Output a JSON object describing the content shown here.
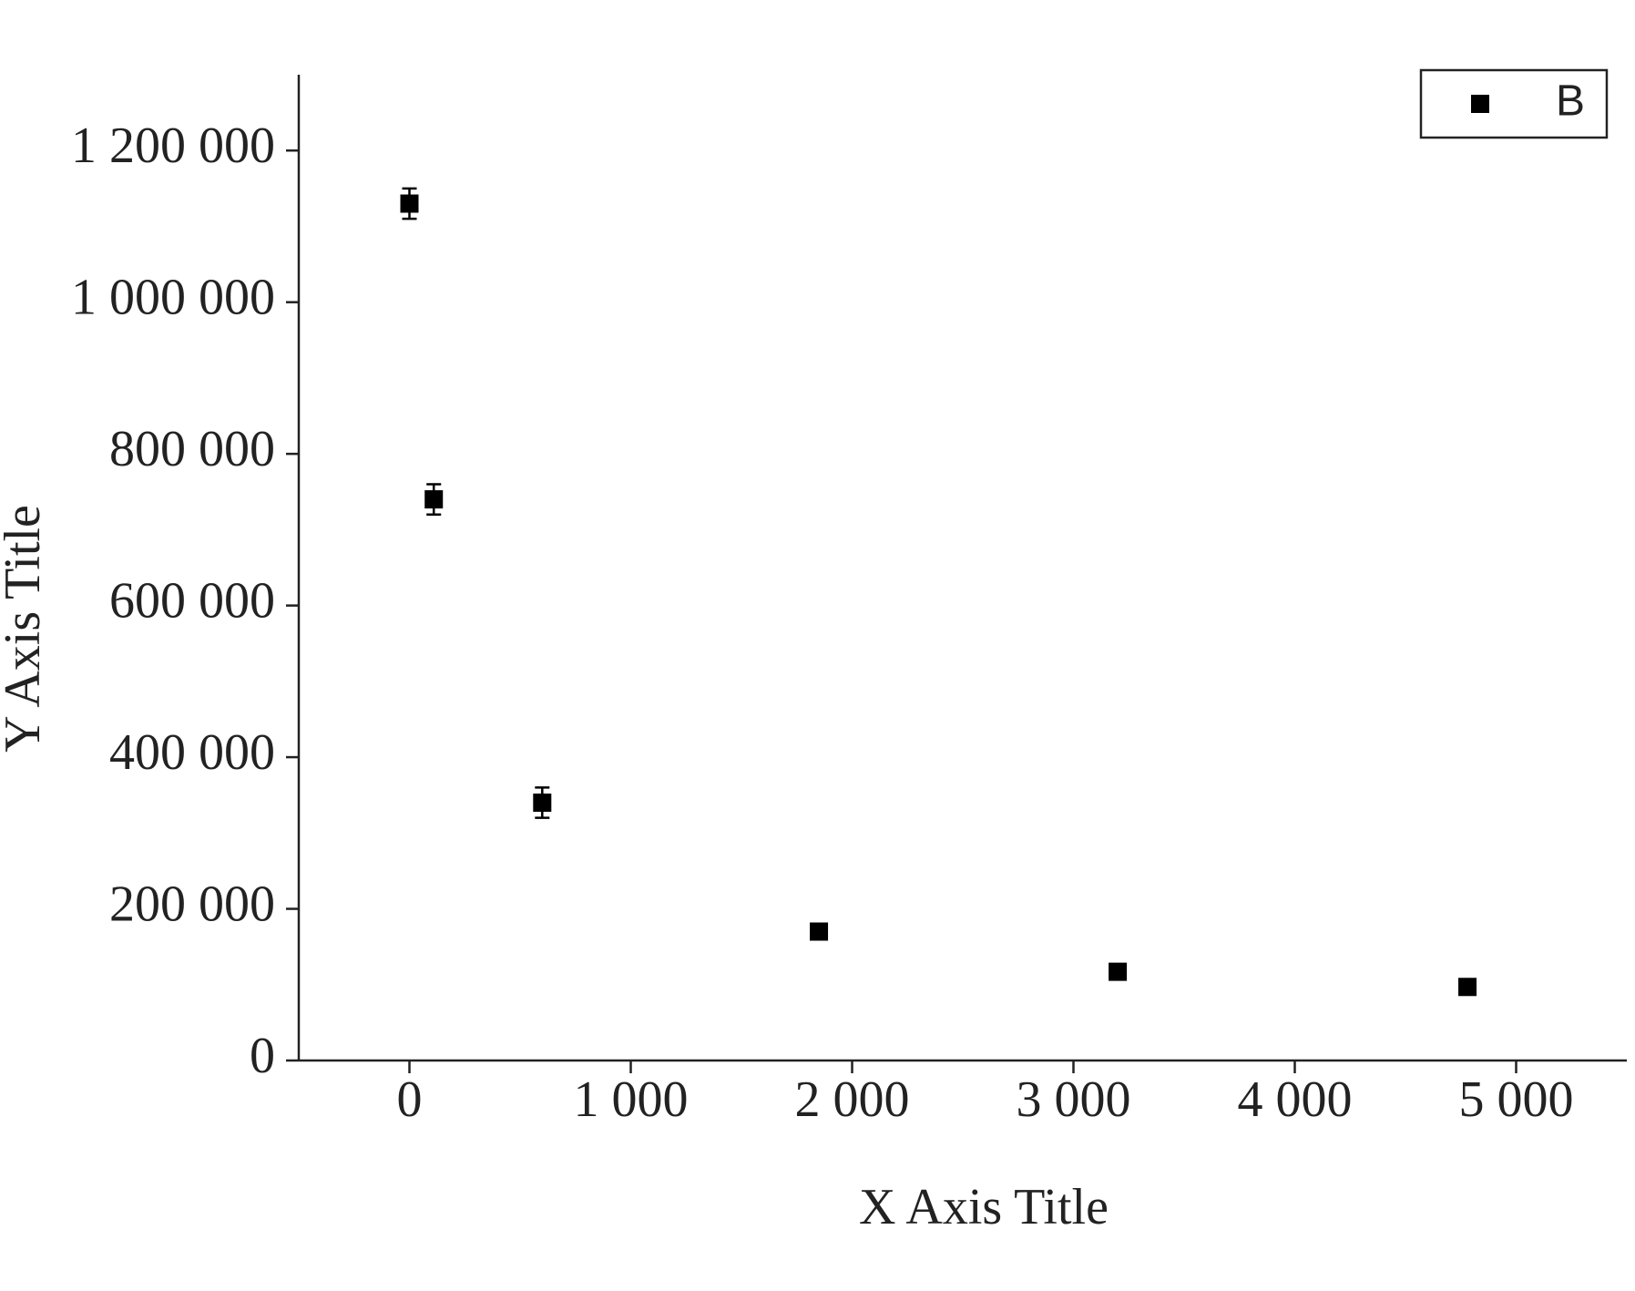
{
  "chart_data": {
    "type": "scatter",
    "x_label": "X Axis Title",
    "y_label": "Y Axis Title",
    "series": [
      {
        "name": "B",
        "color": "#000000",
        "x": [
          0,
          110,
          600,
          1850,
          3200,
          4780
        ],
        "values": [
          1130000,
          740000,
          340000,
          170000,
          117000,
          97000
        ],
        "errors": [
          20000,
          20000,
          20000,
          5000,
          3000,
          5000
        ]
      }
    ],
    "xlim": [
      -500,
      5500
    ],
    "xticks": [
      0,
      {
        "value": 1000,
        "label": "1 000"
      },
      {
        "value": 2000,
        "label": "2 000"
      },
      {
        "value": 3000,
        "label": "3 000"
      },
      {
        "value": 4000,
        "label": "4 000"
      },
      {
        "value": 5000,
        "label": "5 000"
      }
    ],
    "ylim": [
      0,
      1300000
    ],
    "yticks": [
      0,
      {
        "value": 200000,
        "label": "200 000"
      },
      {
        "value": 400000,
        "label": "400 000"
      },
      {
        "value": 600000,
        "label": "600 000"
      },
      {
        "value": 800000,
        "label": "800 000"
      },
      {
        "value": 1000000,
        "label": "1 000 000"
      },
      {
        "value": 1200000,
        "label": "1 200 000"
      }
    ],
    "legend": "top-right",
    "grid": false
  }
}
